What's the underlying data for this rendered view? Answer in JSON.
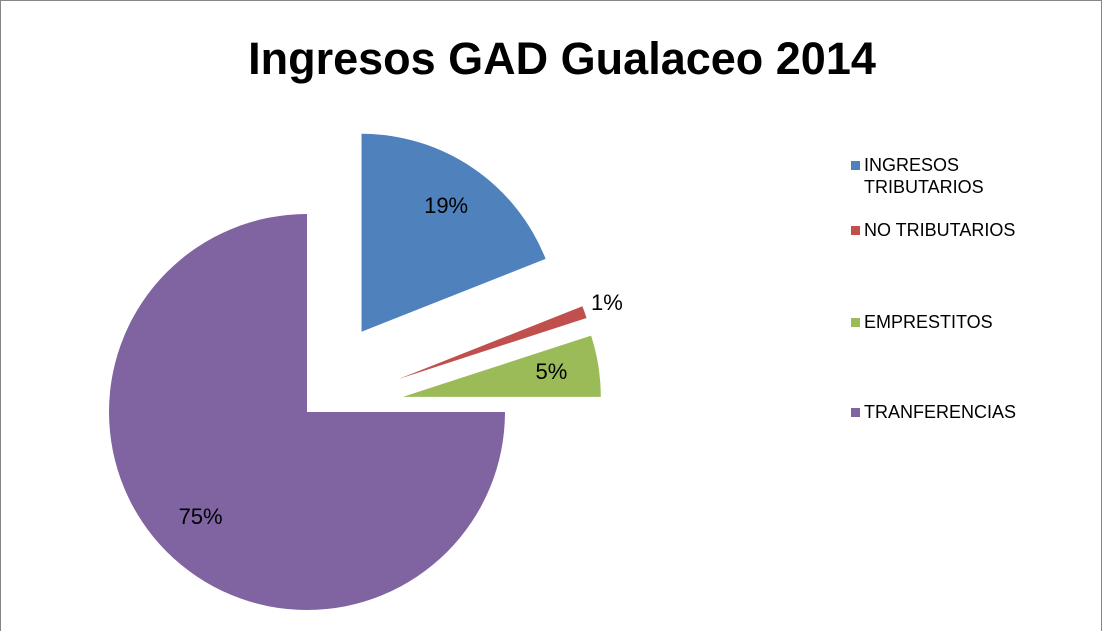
{
  "chart_data": {
    "type": "pie",
    "title": "Ingresos GAD Gualaceo 2014",
    "categories": [
      "INGRESOS TRIBUTARIOS",
      "NO TRIBUTARIOS",
      "EMPRESTITOS",
      "TRANFERENCIAS"
    ],
    "values": [
      19,
      1,
      5,
      75
    ],
    "value_labels": [
      "19%",
      "1%",
      "5%",
      "75%"
    ],
    "colors": [
      "#4f81bd",
      "#c0504d",
      "#9bbb59",
      "#8064a2"
    ],
    "legend": "right"
  }
}
